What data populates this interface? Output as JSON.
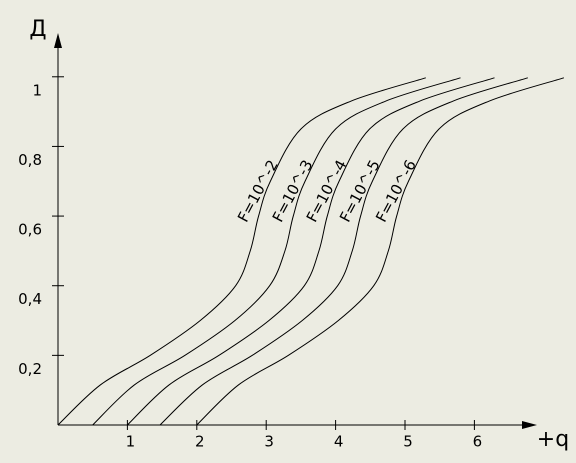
{
  "chart_data": {
    "type": "line",
    "y_label": "Д",
    "x_label": "+q",
    "xlim": [
      0,
      6.8
    ],
    "ylim": [
      0,
      1.12
    ],
    "xticks": [
      1,
      2,
      3,
      4,
      5,
      6
    ],
    "yticks": [
      {
        "value": 0.2,
        "label": "0,2"
      },
      {
        "value": 0.4,
        "label": "0,4"
      },
      {
        "value": 0.6,
        "label": "0,6"
      },
      {
        "value": 0.8,
        "label": "0,8"
      },
      1
    ],
    "series": [
      {
        "name": "F=10^-2",
        "color": "#000000",
        "x": [
          0,
          0.61,
          1.33,
          2.05,
          2.56,
          2.77,
          2.89,
          3.06,
          3.5,
          4.22,
          5.3
        ],
        "values": [
          0,
          0.115,
          0.2,
          0.3,
          0.4,
          0.5,
          0.6,
          0.7,
          0.85,
          0.93,
          0.997
        ]
      },
      {
        "name": "F=10^-3",
        "color": "#000000",
        "x": [
          0.5,
          1.1,
          1.83,
          2.55,
          3.05,
          3.27,
          3.39,
          3.56,
          4.0,
          4.72,
          5.8
        ],
        "values": [
          0,
          0.115,
          0.2,
          0.3,
          0.4,
          0.5,
          0.6,
          0.7,
          0.85,
          0.93,
          0.997
        ]
      },
      {
        "name": "F=10^-4",
        "color": "#000000",
        "x": [
          1.0,
          1.6,
          2.32,
          3.04,
          3.55,
          3.76,
          3.88,
          4.05,
          4.49,
          5.21,
          6.29
        ],
        "values": [
          0,
          0.115,
          0.2,
          0.3,
          0.4,
          0.5,
          0.6,
          0.7,
          0.85,
          0.93,
          0.997
        ]
      },
      {
        "name": "F=10^-5",
        "color": "#000000",
        "x": [
          1.47,
          2.08,
          2.8,
          3.52,
          4.03,
          4.24,
          4.36,
          4.53,
          4.97,
          5.69,
          6.77
        ],
        "values": [
          0,
          0.115,
          0.2,
          0.3,
          0.4,
          0.5,
          0.6,
          0.7,
          0.85,
          0.93,
          0.997
        ]
      },
      {
        "name": "F=10^-6",
        "color": "#000000",
        "x": [
          2.0,
          2.6,
          3.32,
          4.04,
          4.55,
          4.76,
          4.88,
          5.05,
          5.49,
          6.21,
          7.29
        ],
        "values": [
          0,
          0.115,
          0.2,
          0.3,
          0.4,
          0.5,
          0.6,
          0.7,
          0.85,
          0.93,
          0.997
        ]
      }
    ]
  }
}
